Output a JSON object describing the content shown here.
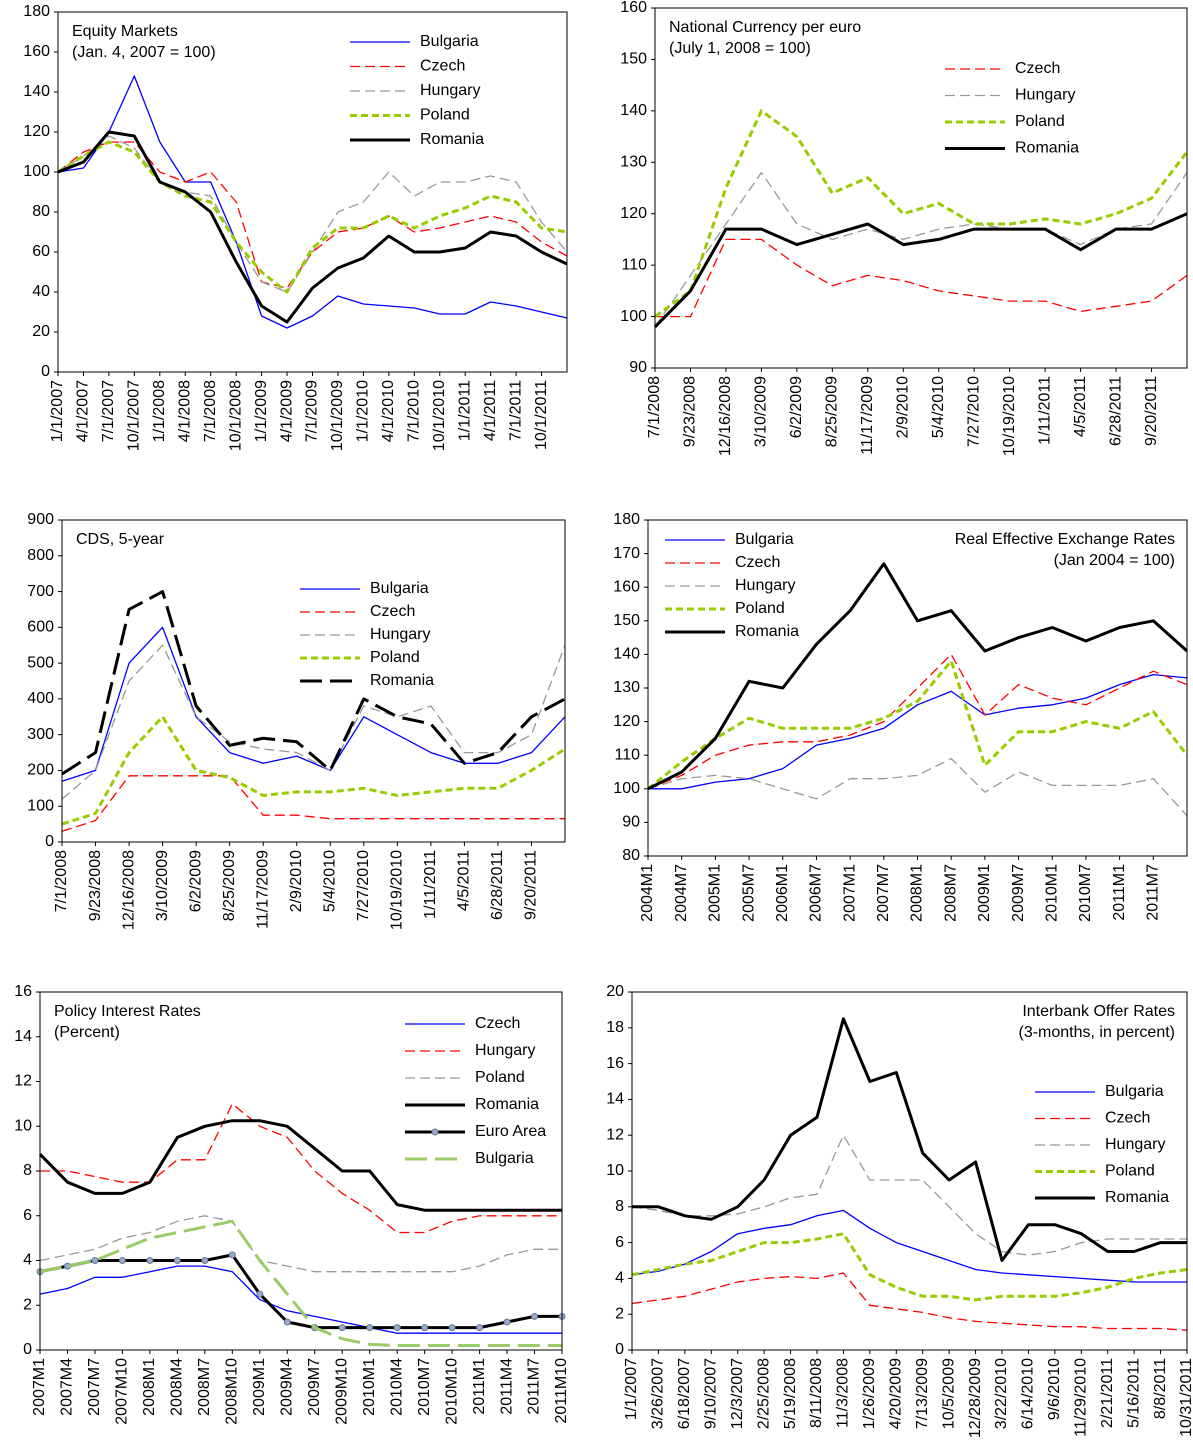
{
  "chart_data": [
    {
      "type": "line",
      "title": "Equity Markets",
      "subtitle": "(Jan. 4, 2007 = 100)",
      "categories": [
        "1/1/2007",
        "4/1/2007",
        "7/1/2007",
        "10/1/2007",
        "1/1/2008",
        "4/1/2008",
        "7/1/2008",
        "10/1/2008",
        "1/1/2009",
        "4/1/2009",
        "7/1/2009",
        "10/1/2009",
        "1/1/2010",
        "4/1/2010",
        "7/1/2010",
        "10/1/2010",
        "1/1/2011",
        "4/1/2011",
        "7/1/2011",
        "10/1/2011",
        null
      ],
      "ylim": [
        0,
        180
      ],
      "yticks": [
        0,
        20,
        40,
        60,
        80,
        100,
        120,
        140,
        160,
        180
      ],
      "series": [
        {
          "name": "Bulgaria",
          "color": "#0000ff",
          "style": "thin",
          "values": [
            100,
            102,
            120,
            148,
            115,
            95,
            95,
            65,
            28,
            22,
            28,
            38,
            34,
            33,
            32,
            29,
            29,
            35,
            33,
            30,
            27
          ]
        },
        {
          "name": "Czech",
          "color": "#ff0000",
          "style": "dashed",
          "values": [
            100,
            110,
            115,
            115,
            100,
            95,
            100,
            85,
            45,
            42,
            60,
            70,
            72,
            78,
            70,
            72,
            75,
            78,
            75,
            65,
            58
          ]
        },
        {
          "name": "Hungary",
          "color": "#999999",
          "style": "dashed",
          "values": [
            100,
            108,
            118,
            112,
            95,
            90,
            88,
            65,
            45,
            40,
            60,
            80,
            85,
            100,
            88,
            95,
            95,
            98,
            95,
            75,
            60
          ]
        },
        {
          "name": "Poland",
          "color": "#99cc00",
          "style": "bold-dashed",
          "values": [
            100,
            108,
            115,
            110,
            95,
            88,
            85,
            65,
            50,
            40,
            62,
            72,
            72,
            78,
            72,
            78,
            82,
            88,
            85,
            72,
            70
          ]
        },
        {
          "name": "Romania",
          "color": "#000000",
          "style": "bold",
          "values": [
            100,
            105,
            120,
            118,
            95,
            90,
            80,
            55,
            33,
            25,
            42,
            52,
            57,
            68,
            60,
            60,
            62,
            70,
            68,
            60,
            54
          ]
        }
      ]
    },
    {
      "type": "line",
      "title": "National Currency per euro",
      "subtitle": "(July  1, 2008 = 100)",
      "categories": [
        "7/1/2008",
        "9/23/2008",
        "12/16/2008",
        "3/10/2009",
        "6/2/2009",
        "8/25/2009",
        "11/17/2009",
        "2/9/2010",
        "5/4/2010",
        "7/27/2010",
        "10/19/2010",
        "1/11/2011",
        "4/5/2011",
        "6/28/2011",
        "9/20/2011",
        null
      ],
      "ylim": [
        90,
        160
      ],
      "yticks": [
        90,
        100,
        110,
        120,
        130,
        140,
        150,
        160
      ],
      "series": [
        {
          "name": "Czech",
          "color": "#ff0000",
          "style": "dashed",
          "values": [
            100,
            100,
            115,
            115,
            110,
            106,
            108,
            107,
            105,
            104,
            103,
            103,
            101,
            102,
            103,
            108
          ]
        },
        {
          "name": "Hungary",
          "color": "#999999",
          "style": "dashed",
          "values": [
            98,
            108,
            118,
            128,
            118,
            115,
            117,
            115,
            117,
            118,
            117,
            117,
            114,
            117,
            118,
            128
          ]
        },
        {
          "name": "Poland",
          "color": "#99cc00",
          "style": "bold-dashed",
          "values": [
            100,
            105,
            125,
            140,
            135,
            124,
            127,
            120,
            122,
            118,
            118,
            119,
            118,
            120,
            123,
            132
          ]
        },
        {
          "name": "Romania",
          "color": "#000000",
          "style": "bold",
          "values": [
            98,
            105,
            117,
            117,
            114,
            116,
            118,
            114,
            115,
            117,
            117,
            117,
            113,
            117,
            117,
            120
          ]
        }
      ]
    },
    {
      "type": "line",
      "title": "CDS, 5-year",
      "categories": [
        "7/1/2008",
        "9/23/2008",
        "12/16/2008",
        "3/10/2009",
        "6/2/2009",
        "8/25/2009",
        "11/17/2009",
        "2/9/2010",
        "5/4/2010",
        "7/27/2010",
        "10/19/2010",
        "1/11/2011",
        "4/5/2011",
        "6/28/2011",
        "9/20/2011",
        null
      ],
      "ylim": [
        0,
        900
      ],
      "yticks": [
        0,
        100,
        200,
        300,
        400,
        500,
        600,
        700,
        800,
        900
      ],
      "series": [
        {
          "name": "Bulgaria",
          "color": "#0000ff",
          "style": "thin",
          "values": [
            170,
            200,
            500,
            600,
            350,
            250,
            220,
            240,
            200,
            350,
            300,
            250,
            220,
            220,
            250,
            350
          ]
        },
        {
          "name": "Czech",
          "color": "#ff0000",
          "style": "dashed",
          "values": [
            30,
            60,
            185,
            185,
            185,
            185,
            75,
            75,
            65,
            65,
            65,
            65,
            65,
            65,
            65,
            65
          ]
        },
        {
          "name": "Hungary",
          "color": "#999999",
          "style": "dashed",
          "values": [
            120,
            200,
            450,
            550,
            350,
            280,
            260,
            250,
            200,
            380,
            350,
            380,
            250,
            250,
            300,
            550
          ]
        },
        {
          "name": "Poland",
          "color": "#99cc00",
          "style": "bold-dashed",
          "values": [
            50,
            80,
            250,
            350,
            200,
            180,
            130,
            140,
            140,
            150,
            130,
            140,
            150,
            150,
            200,
            260
          ]
        },
        {
          "name": "Romania",
          "color": "#000000",
          "style": "bold-long-dashed",
          "values": [
            190,
            250,
            650,
            700,
            380,
            270,
            290,
            280,
            200,
            400,
            350,
            330,
            220,
            250,
            350,
            400
          ]
        }
      ]
    },
    {
      "type": "line",
      "title": "Real Effective Exchange Rates",
      "subtitle": "(Jan 2004 = 100)",
      "categories": [
        "2004M1",
        "2004M7",
        "2005M1",
        "2005M7",
        "2006M1",
        "2006M7",
        "2007M1",
        "2007M7",
        "2008M1",
        "2008M7",
        "2009M1",
        "2009M7",
        "2010M1",
        "2010M7",
        "2011M1",
        "2011M7",
        null
      ],
      "ylim": [
        80,
        180
      ],
      "yticks": [
        80,
        90,
        100,
        110,
        120,
        130,
        140,
        150,
        160,
        170,
        180
      ],
      "series": [
        {
          "name": "Bulgaria",
          "color": "#0000ff",
          "style": "thin",
          "values": [
            100,
            100,
            102,
            103,
            106,
            113,
            115,
            118,
            125,
            129,
            122,
            124,
            125,
            127,
            131,
            134,
            133
          ]
        },
        {
          "name": "Czech",
          "color": "#ff0000",
          "style": "dashed",
          "values": [
            100,
            104,
            110,
            113,
            114,
            114,
            116,
            120,
            130,
            140,
            122,
            131,
            127,
            125,
            130,
            135,
            131
          ]
        },
        {
          "name": "Hungary",
          "color": "#999999",
          "style": "dashed",
          "values": [
            100,
            103,
            104,
            103,
            100,
            97,
            103,
            103,
            104,
            109,
            99,
            105,
            101,
            101,
            101,
            103,
            92
          ]
        },
        {
          "name": "Poland",
          "color": "#99cc00",
          "style": "bold-dashed",
          "values": [
            100,
            108,
            115,
            121,
            118,
            118,
            118,
            121,
            126,
            138,
            107,
            117,
            117,
            120,
            118,
            123,
            110
          ]
        },
        {
          "name": "Romania",
          "color": "#000000",
          "style": "bold",
          "values": [
            100,
            105,
            115,
            132,
            130,
            143,
            153,
            167,
            150,
            153,
            141,
            145,
            148,
            144,
            148,
            150,
            141
          ]
        }
      ]
    },
    {
      "type": "line",
      "title": "Policy Interest Rates",
      "subtitle": "(Percent)",
      "categories": [
        "2007M1",
        "2007M4",
        "2007M7",
        "2007M10",
        "2008M1",
        "2008M4",
        "2008M7",
        "2008M10",
        "2009M1",
        "2009M4",
        "2009M7",
        "2009M10",
        "2010M1",
        "2010M4",
        "2010M7",
        "2010M10",
        "2011M1",
        "2011M4",
        "2011M7",
        "2011M10"
      ],
      "ylim": [
        0,
        16
      ],
      "yticks": [
        0,
        2,
        4,
        6,
        8,
        10,
        12,
        14,
        16
      ],
      "series": [
        {
          "name": "Czech",
          "color": "#0000ff",
          "style": "thin",
          "values": [
            2.5,
            2.75,
            3.25,
            3.25,
            3.5,
            3.75,
            3.75,
            3.5,
            2.25,
            1.75,
            1.5,
            1.25,
            1,
            0.75,
            0.75,
            0.75,
            0.75,
            0.75,
            0.75,
            0.75
          ]
        },
        {
          "name": "Hungary",
          "color": "#ff0000",
          "style": "dashed",
          "values": [
            8,
            8,
            7.75,
            7.5,
            7.5,
            8.5,
            8.5,
            11,
            10,
            9.5,
            8,
            7,
            6.25,
            5.25,
            5.25,
            5.75,
            6,
            6,
            6,
            6
          ]
        },
        {
          "name": "Poland",
          "color": "#999999",
          "style": "dashed",
          "values": [
            4,
            4.25,
            4.5,
            5,
            5.25,
            5.75,
            6,
            5.75,
            4,
            3.75,
            3.5,
            3.5,
            3.5,
            3.5,
            3.5,
            3.5,
            3.75,
            4.25,
            4.5,
            4.5
          ]
        },
        {
          "name": "Romania",
          "color": "#000000",
          "style": "bold",
          "values": [
            8.75,
            7.5,
            7,
            7,
            7.5,
            9.5,
            10,
            10.25,
            10.25,
            10,
            9,
            8,
            8,
            6.5,
            6.25,
            6.25,
            6.25,
            6.25,
            6.25,
            6.25
          ]
        },
        {
          "name": "Euro Area",
          "color": "#000000",
          "style": "bold-markers",
          "values": [
            3.5,
            3.75,
            4,
            4,
            4,
            4,
            4,
            4.25,
            2.5,
            1.25,
            1,
            1,
            1,
            1,
            1,
            1,
            1,
            1.25,
            1.5,
            1.5
          ]
        },
        {
          "name": "Bulgaria",
          "color": "#99cc66",
          "style": "bold-long-dashed",
          "values": [
            3.5,
            3.75,
            4,
            4.5,
            5,
            5.25,
            5.5,
            5.75,
            4,
            2.5,
            1,
            0.5,
            0.25,
            0.2,
            0.2,
            0.2,
            0.2,
            0.2,
            0.2,
            0.2
          ]
        }
      ]
    },
    {
      "type": "line",
      "title": "Interbank Offer Rates",
      "subtitle": "(3-months, in percent)",
      "categories": [
        "1/1/2007",
        "3/26/2007",
        "6/18/2007",
        "9/10/2007",
        "12/3/2007",
        "2/25/2008",
        "5/19/2008",
        "8/11/2008",
        "11/3/2008",
        "1/26/2009",
        "4/20/2009",
        "7/13/2009",
        "10/5/2009",
        "12/28/2009",
        "3/22/2010",
        "6/14/2010",
        "9/6/2010",
        "11/29/2010",
        "2/21/2011",
        "5/16/2011",
        "8/8/2011",
        "10/31/2011"
      ],
      "ylim": [
        0,
        20
      ],
      "yticks": [
        0,
        2,
        4,
        6,
        8,
        10,
        12,
        14,
        16,
        18,
        20
      ],
      "series": [
        {
          "name": "Bulgaria",
          "color": "#0000ff",
          "style": "thin",
          "values": [
            4.2,
            4.4,
            4.8,
            5.5,
            6.5,
            6.8,
            7,
            7.5,
            7.8,
            6.8,
            6,
            5.5,
            5,
            4.5,
            4.3,
            4.2,
            4.1,
            4,
            3.9,
            3.8,
            3.8,
            3.8
          ]
        },
        {
          "name": "Czech",
          "color": "#ff0000",
          "style": "dashed",
          "values": [
            2.6,
            2.8,
            3,
            3.4,
            3.8,
            4,
            4.1,
            4,
            4.3,
            2.5,
            2.3,
            2.1,
            1.8,
            1.6,
            1.5,
            1.4,
            1.3,
            1.3,
            1.2,
            1.2,
            1.2,
            1.1
          ]
        },
        {
          "name": "Hungary",
          "color": "#999999",
          "style": "dashed",
          "values": [
            8,
            7.8,
            7.5,
            7.5,
            7.6,
            8,
            8.5,
            8.7,
            12,
            9.5,
            9.5,
            9.5,
            8,
            6.5,
            5.5,
            5.3,
            5.5,
            6,
            6.2,
            6.2,
            6.2,
            6.2
          ]
        },
        {
          "name": "Poland",
          "color": "#99cc00",
          "style": "bold-dashed",
          "values": [
            4.2,
            4.5,
            4.8,
            5,
            5.5,
            6,
            6,
            6.2,
            6.5,
            4.2,
            3.5,
            3,
            3,
            2.8,
            3,
            3,
            3,
            3.2,
            3.5,
            4,
            4.3,
            4.5
          ]
        },
        {
          "name": "Romania",
          "color": "#000000",
          "style": "bold",
          "values": [
            8,
            8,
            7.5,
            7.3,
            8,
            9.5,
            12,
            13,
            18.5,
            15,
            15.5,
            11,
            9.5,
            10.5,
            5,
            7,
            7,
            6.5,
            5.5,
            5.5,
            6,
            6
          ]
        }
      ]
    }
  ]
}
